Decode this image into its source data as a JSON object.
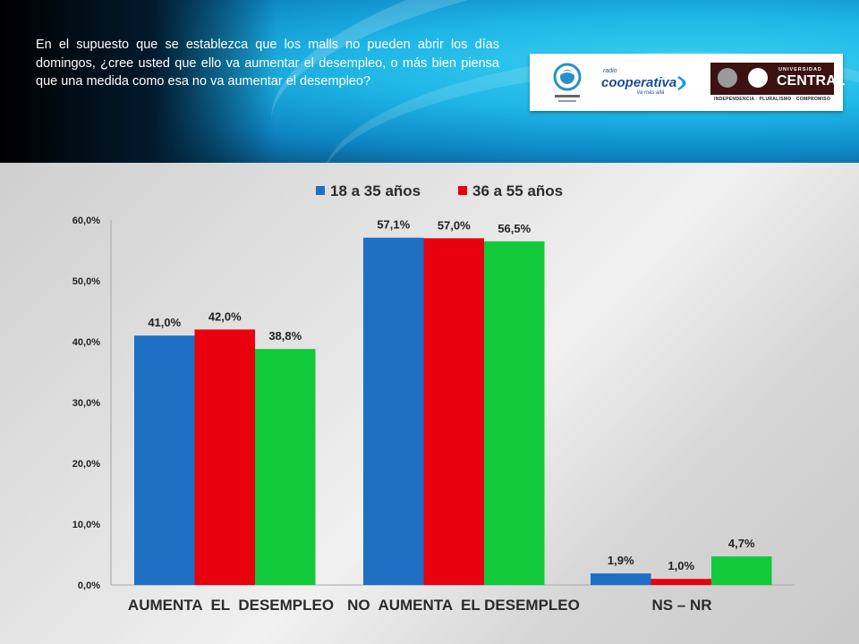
{
  "question": "En el supuesto que se establezca que los malls no pueden abrir los días domingos, ¿cree usted que ello va aumentar el desempleo, o más bien piensa que una medida como esa no va aumentar el desempleo?",
  "logos": {
    "coop_radio": "radio",
    "coop_name": "cooperativa",
    "coop_tagline": "va más allá",
    "uc_univ": "UNIVERSIDAD",
    "uc_name": "CENTRAL",
    "uc_motto": "INDEPENDENCIA · PLURALISMO · COMPROMISO"
  },
  "chart_data": {
    "type": "bar",
    "categories": [
      "AUMENTA  EL  DESEMPLEO",
      "NO  AUMENTA  EL DESEMPLEO",
      "NS – NR"
    ],
    "series": [
      {
        "name": "18 a 35 años",
        "color": "#1f6fc5",
        "values": [
          41.0,
          57.1,
          1.9
        ],
        "labels": [
          "41,0%",
          "57,1%",
          "1,9%"
        ]
      },
      {
        "name": "36 a 55 años",
        "color": "#e8000d",
        "values": [
          42.0,
          57.0,
          1.0
        ],
        "labels": [
          "42,0%",
          "57,0%",
          "1,0%"
        ]
      },
      {
        "name": "",
        "color": "#12c93c",
        "values": [
          38.8,
          56.5,
          4.7
        ],
        "labels": [
          "38,8%",
          "56,5%",
          "4,7%"
        ]
      }
    ],
    "yticks": [
      "0,0%",
      "10,0%",
      "20,0%",
      "30,0%",
      "40,0%",
      "50,0%",
      "60,0%"
    ],
    "ylim": [
      0,
      60
    ],
    "legend_position": "top-center",
    "grid": false
  }
}
